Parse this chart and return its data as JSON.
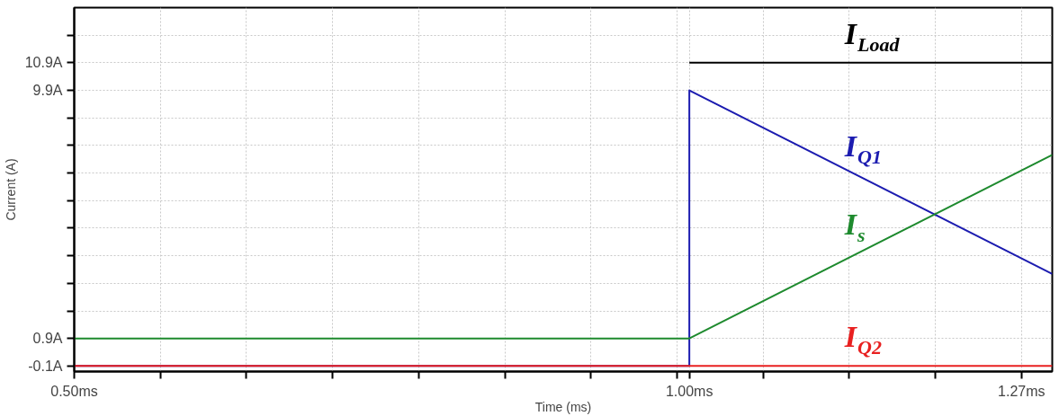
{
  "chart_data": {
    "type": "line",
    "xlabel": "Time (ms)",
    "ylabel": "Current (A)",
    "xlim": [
      0.5,
      1.295
    ],
    "ylim": [
      -0.3,
      12.9
    ],
    "xticks": [
      {
        "value": 0.5,
        "label": "0.50ms"
      },
      {
        "value": 0.57,
        "label": null
      },
      {
        "value": 0.64,
        "label": null
      },
      {
        "value": 0.71,
        "label": null
      },
      {
        "value": 0.78,
        "label": null
      },
      {
        "value": 0.85,
        "label": null
      },
      {
        "value": 0.92,
        "label": null
      },
      {
        "value": 0.99,
        "label": null
      },
      {
        "value": 1.0,
        "label": "1.00ms"
      },
      {
        "value": 1.06,
        "label": null
      },
      {
        "value": 1.13,
        "label": null
      },
      {
        "value": 1.2,
        "label": null
      },
      {
        "value": 1.27,
        "label": "1.27ms"
      }
    ],
    "yticks": [
      {
        "value": -0.1,
        "label": "-0.1A"
      },
      {
        "value": 0.9,
        "label": "0.9A"
      },
      {
        "value": 1.9,
        "label": null
      },
      {
        "value": 2.9,
        "label": null
      },
      {
        "value": 3.9,
        "label": null
      },
      {
        "value": 4.9,
        "label": null
      },
      {
        "value": 5.9,
        "label": null
      },
      {
        "value": 6.9,
        "label": null
      },
      {
        "value": 7.9,
        "label": null
      },
      {
        "value": 8.9,
        "label": null
      },
      {
        "value": 9.9,
        "label": "9.9A"
      },
      {
        "value": 10.9,
        "label": "10.9A"
      },
      {
        "value": 11.9,
        "label": null
      }
    ],
    "grid": true,
    "legend": false,
    "line_style": "solid",
    "marker": "none",
    "series": [
      {
        "name": "I$_{Load}$",
        "color": "#000000",
        "x": [
          1.0,
          1.295
        ],
        "values": [
          10.9,
          10.9
        ]
      },
      {
        "name": "I$_{Q1}$",
        "color": "#1c1cb0",
        "x": [
          0.5,
          1.0,
          1.0,
          1.295
        ],
        "values": [
          -0.1,
          -0.1,
          9.9,
          3.24
        ]
      },
      {
        "name": "I$_{s}$",
        "color": "#1e8a2e",
        "x": [
          0.5,
          1.0,
          1.295
        ],
        "values": [
          0.9,
          0.9,
          7.56
        ]
      },
      {
        "name": "I$_{Q2}$",
        "color": "#e82020",
        "x": [
          0.5,
          1.295
        ],
        "values": [
          -0.1,
          -0.1
        ]
      }
    ]
  }
}
